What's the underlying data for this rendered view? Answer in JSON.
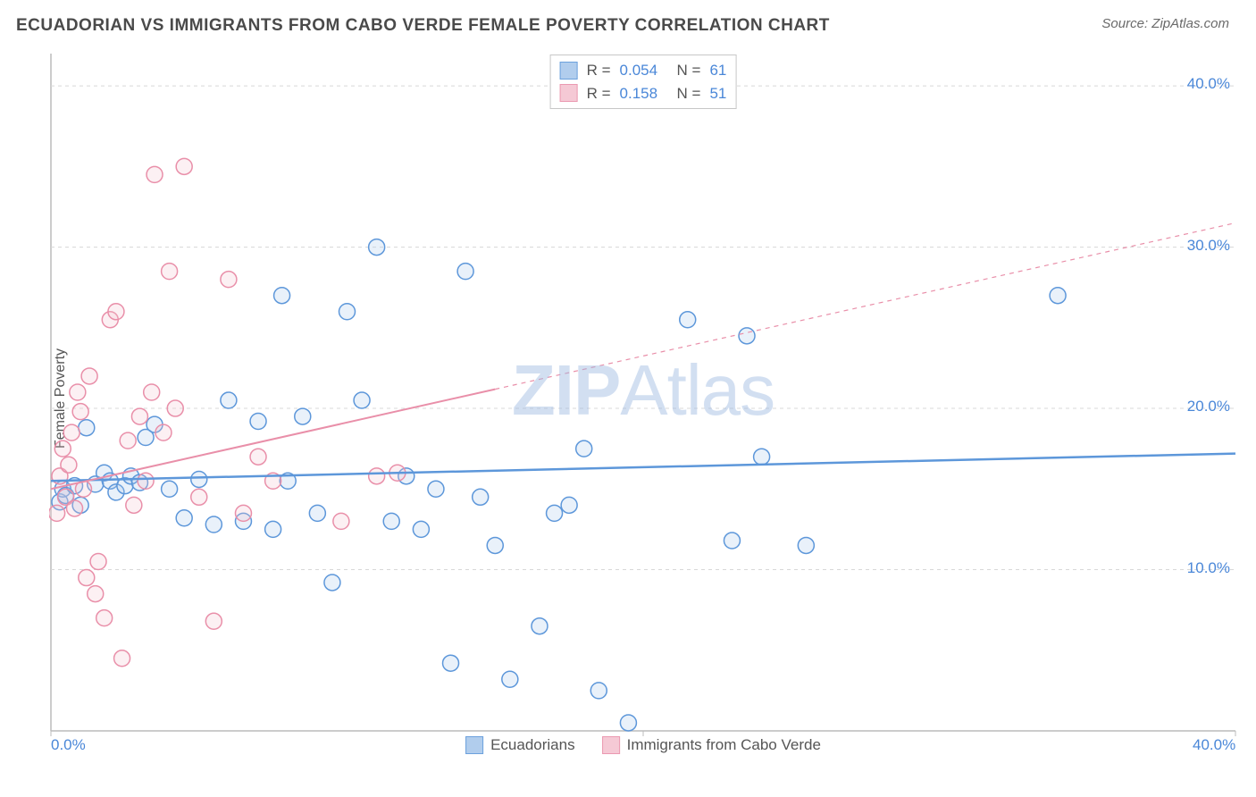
{
  "header": {
    "title": "ECUADORIAN VS IMMIGRANTS FROM CABO VERDE FEMALE POVERTY CORRELATION CHART",
    "source_prefix": "Source: ",
    "source_name": "ZipAtlas.com"
  },
  "y_axis_label": "Female Poverty",
  "watermark": {
    "bold": "ZIP",
    "rest": "Atlas"
  },
  "chart": {
    "type": "scatter",
    "xlim": [
      0,
      40
    ],
    "ylim": [
      0,
      42
    ],
    "background_color": "#ffffff",
    "grid_color": "#d8d8d8",
    "grid_dash": "4,4",
    "border_color": "#bcbcbc",
    "x_ticks": [
      {
        "value": 0,
        "label": "0.0%"
      },
      {
        "value": 40,
        "label": "40.0%"
      }
    ],
    "y_ticks": [
      {
        "value": 10,
        "label": "10.0%"
      },
      {
        "value": 20,
        "label": "20.0%"
      },
      {
        "value": 30,
        "label": "30.0%"
      },
      {
        "value": 40,
        "label": "40.0%"
      }
    ],
    "marker_radius": 9,
    "marker_stroke_width": 1.5,
    "marker_fill_opacity": 0.25,
    "series": [
      {
        "key": "ecuadorians",
        "label": "Ecuadorians",
        "color_stroke": "#5d97da",
        "color_fill": "#a9c8ec",
        "R": "0.054",
        "N": "61",
        "trend": {
          "x1": 0,
          "y1": 15.5,
          "x2": 40,
          "y2": 17.2,
          "solid_until_x": 40,
          "stroke_width": 2.5
        },
        "points": [
          [
            0.3,
            14.2
          ],
          [
            0.4,
            15.0
          ],
          [
            0.5,
            14.6
          ],
          [
            0.8,
            15.2
          ],
          [
            1.0,
            14.0
          ],
          [
            1.2,
            18.8
          ],
          [
            1.5,
            15.3
          ],
          [
            1.8,
            16.0
          ],
          [
            2.0,
            15.5
          ],
          [
            2.2,
            14.8
          ],
          [
            2.5,
            15.2
          ],
          [
            2.7,
            15.8
          ],
          [
            3.0,
            15.4
          ],
          [
            3.2,
            18.2
          ],
          [
            3.5,
            19.0
          ],
          [
            4.0,
            15.0
          ],
          [
            4.5,
            13.2
          ],
          [
            5.0,
            15.6
          ],
          [
            5.5,
            12.8
          ],
          [
            6.0,
            20.5
          ],
          [
            6.5,
            13.0
          ],
          [
            7.0,
            19.2
          ],
          [
            7.5,
            12.5
          ],
          [
            7.8,
            27.0
          ],
          [
            8.0,
            15.5
          ],
          [
            8.5,
            19.5
          ],
          [
            9.0,
            13.5
          ],
          [
            9.5,
            9.2
          ],
          [
            10.0,
            26.0
          ],
          [
            10.5,
            20.5
          ],
          [
            11.0,
            30.0
          ],
          [
            11.5,
            13.0
          ],
          [
            12.0,
            15.8
          ],
          [
            12.5,
            12.5
          ],
          [
            13.0,
            15.0
          ],
          [
            13.5,
            4.2
          ],
          [
            14.0,
            28.5
          ],
          [
            14.5,
            14.5
          ],
          [
            15.0,
            11.5
          ],
          [
            15.5,
            3.2
          ],
          [
            16.5,
            6.5
          ],
          [
            17.0,
            13.5
          ],
          [
            17.5,
            14.0
          ],
          [
            18.0,
            17.5
          ],
          [
            18.5,
            2.5
          ],
          [
            19.5,
            0.5
          ],
          [
            21.5,
            25.5
          ],
          [
            23.0,
            11.8
          ],
          [
            23.5,
            24.5
          ],
          [
            24.0,
            17.0
          ],
          [
            25.5,
            11.5
          ],
          [
            34.0,
            27.0
          ]
        ]
      },
      {
        "key": "cabo_verde",
        "label": "Immigrants from Cabo Verde",
        "color_stroke": "#e98fa9",
        "color_fill": "#f5c4d1",
        "R": "0.158",
        "N": "51",
        "trend": {
          "x1": 0,
          "y1": 15.0,
          "x2": 40,
          "y2": 31.5,
          "solid_until_x": 15,
          "stroke_width": 2
        },
        "points": [
          [
            0.2,
            13.5
          ],
          [
            0.3,
            15.8
          ],
          [
            0.4,
            17.5
          ],
          [
            0.5,
            14.5
          ],
          [
            0.6,
            16.5
          ],
          [
            0.7,
            18.5
          ],
          [
            0.8,
            13.8
          ],
          [
            0.9,
            21.0
          ],
          [
            1.0,
            19.8
          ],
          [
            1.1,
            15.0
          ],
          [
            1.2,
            9.5
          ],
          [
            1.3,
            22.0
          ],
          [
            1.5,
            8.5
          ],
          [
            1.6,
            10.5
          ],
          [
            1.8,
            7.0
          ],
          [
            2.0,
            25.5
          ],
          [
            2.2,
            26.0
          ],
          [
            2.4,
            4.5
          ],
          [
            2.6,
            18.0
          ],
          [
            2.8,
            14.0
          ],
          [
            3.0,
            19.5
          ],
          [
            3.2,
            15.5
          ],
          [
            3.4,
            21.0
          ],
          [
            3.5,
            34.5
          ],
          [
            3.8,
            18.5
          ],
          [
            4.0,
            28.5
          ],
          [
            4.2,
            20.0
          ],
          [
            4.5,
            35.0
          ],
          [
            5.0,
            14.5
          ],
          [
            5.5,
            6.8
          ],
          [
            6.0,
            28.0
          ],
          [
            6.5,
            13.5
          ],
          [
            7.0,
            17.0
          ],
          [
            7.5,
            15.5
          ],
          [
            9.8,
            13.0
          ],
          [
            11.0,
            15.8
          ],
          [
            11.7,
            16.0
          ]
        ]
      }
    ]
  },
  "stats_legend": {
    "r_label": "R =",
    "n_label": "N ="
  },
  "colors": {
    "title_text": "#4a4a4a",
    "axis_text": "#4a87d8",
    "label_text": "#555555"
  }
}
